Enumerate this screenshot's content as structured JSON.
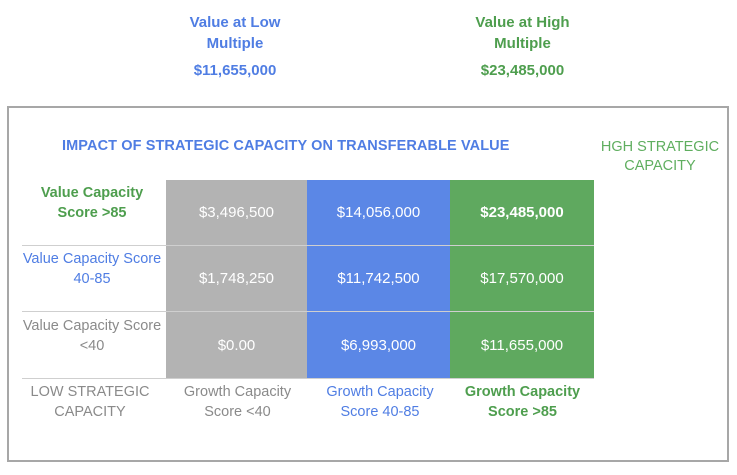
{
  "header": {
    "low_title": "Value at Low\nMultiple",
    "low_value": "$11,655,000",
    "high_title": "Value at High\nMultiple",
    "high_value": "$23,485,000"
  },
  "matrix": {
    "title": "IMPACT OF STRATEGIC CAPACITY ON TRANSFERABLE VALUE",
    "high_strategic_label": "HGH STRATEGIC CAPACITY",
    "low_strategic_label": "LOW STRATEGIC CAPACITY",
    "rows": [
      {
        "label": "Value Capacity Score >85",
        "cells": [
          "$3,496,500",
          "$14,056,000",
          "$23,485,000"
        ]
      },
      {
        "label": "Value Capacity Score 40-85",
        "cells": [
          "$1,748,250",
          "$11,742,500",
          "$17,570,000"
        ]
      },
      {
        "label": "Value Capacity Score <40",
        "cells": [
          "$0.00",
          "$6,993,000",
          "$11,655,000"
        ]
      }
    ],
    "columns": [
      "Growth Capacity Score <40",
      "Growth Capacity Score 40-85",
      "Growth Capacity Score >85"
    ]
  },
  "colors": {
    "blue": "#4f7de3",
    "green": "#4e9e4e",
    "gray": "#b3b3b3"
  }
}
